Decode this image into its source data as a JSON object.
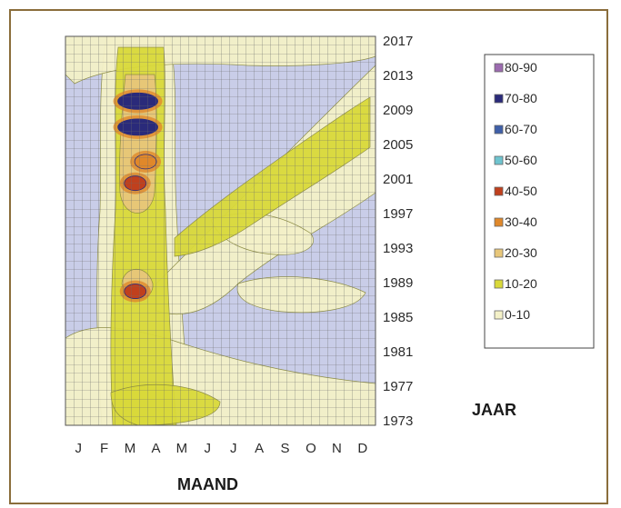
{
  "chart_data": {
    "type": "heatmap",
    "title": "",
    "xlabel": "MAAND",
    "ylabel": "JAAR",
    "x_ticks": [
      "J",
      "F",
      "M",
      "A",
      "M",
      "J",
      "J",
      "A",
      "S",
      "O",
      "N",
      "D"
    ],
    "y_ticks": [
      "2017",
      "2013",
      "2009",
      "2005",
      "2001",
      "1997",
      "1993",
      "1989",
      "1985",
      "1981",
      "1977",
      "1973"
    ],
    "year_range": [
      1973,
      2017
    ],
    "month_range": [
      1,
      12
    ],
    "grid": true,
    "legend_position": "right",
    "legend": [
      {
        "label": "80-90",
        "color": "#9c6bb0"
      },
      {
        "label": "70-80",
        "color": "#2a2a7a"
      },
      {
        "label": "60-70",
        "color": "#3f5fa8"
      },
      {
        "label": "50-60",
        "color": "#6fc4cf"
      },
      {
        "label": "40-50",
        "color": "#c0401d"
      },
      {
        "label": "30-40",
        "color": "#e0882a"
      },
      {
        "label": "20-30",
        "color": "#e8c77a"
      },
      {
        "label": "10-20",
        "color": "#d9d93a"
      },
      {
        "label": "0-10",
        "color": "#f4f1c8"
      }
    ],
    "background_color": "#c9cde8",
    "hotspots": [
      {
        "month": 3.3,
        "year": 2010,
        "value": 75
      },
      {
        "month": 3.3,
        "year": 2007,
        "value": 72
      },
      {
        "month": 3.2,
        "year": 2000.5,
        "value": 45
      },
      {
        "month": 3.2,
        "year": 1988,
        "value": 42
      },
      {
        "month": 3.6,
        "year": 2003,
        "value": 32
      }
    ]
  }
}
